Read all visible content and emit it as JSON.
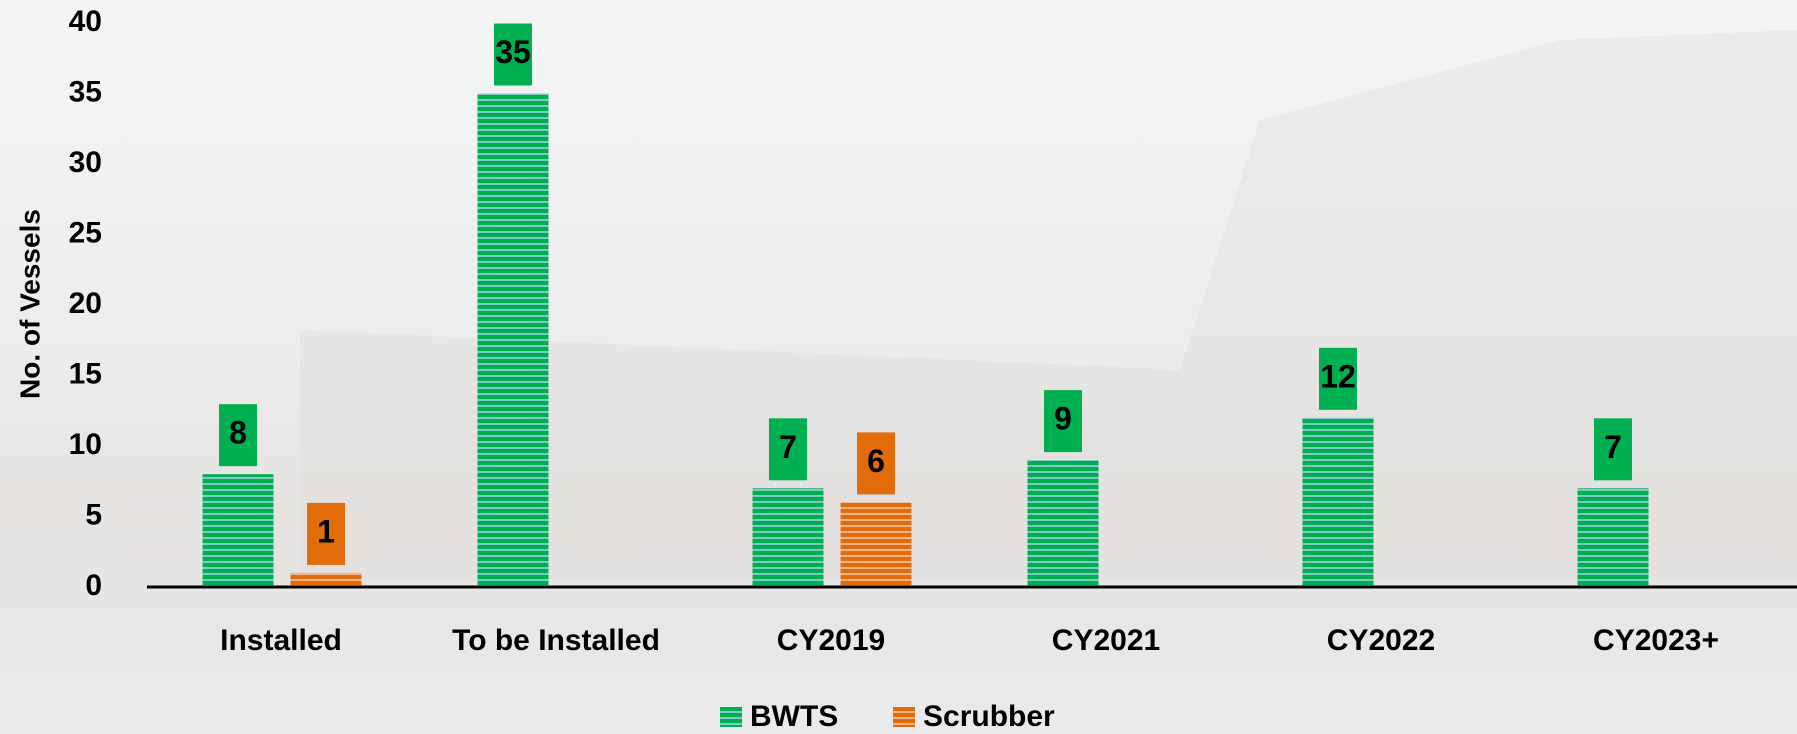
{
  "chart_data": {
    "type": "bar",
    "y_label": "No. of Vessels",
    "categories": [
      "Installed",
      "To be Installed",
      "CY2019",
      "CY2021",
      "CY2022",
      "CY2023+"
    ],
    "series": [
      {
        "name": "BWTS",
        "color": "#00b050",
        "values": [
          8,
          35,
          7,
          9,
          12,
          7
        ]
      },
      {
        "name": "Scrubber",
        "color": "#e36c0a",
        "values": [
          1,
          null,
          6,
          null,
          null,
          null
        ]
      }
    ],
    "ylim": [
      0,
      40
    ],
    "yticks": [
      0,
      5,
      10,
      15,
      20,
      25,
      30,
      35,
      40
    ],
    "grid": false,
    "legend": "bottom"
  }
}
